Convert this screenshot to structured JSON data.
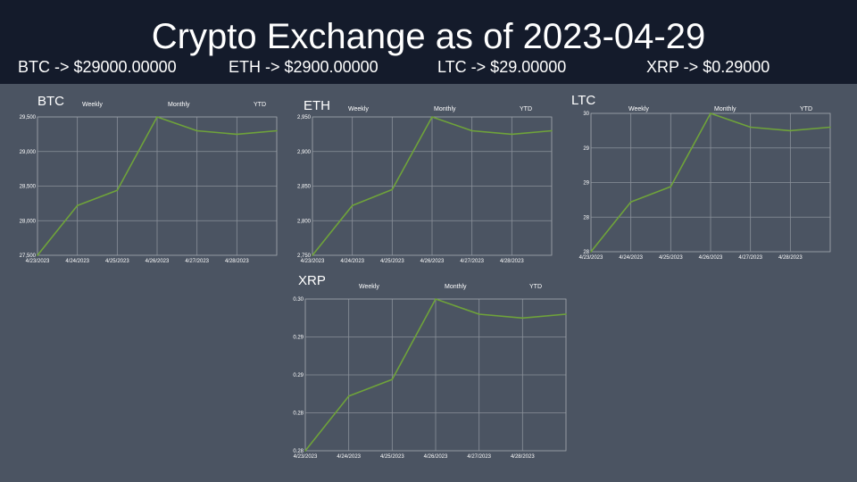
{
  "header": {
    "title": "Crypto Exchange as of 2023-04-29",
    "tickers": [
      {
        "text": "BTC -> $29000.00000"
      },
      {
        "text": "ETH -> $2900.00000"
      },
      {
        "text": "LTC -> $29.00000"
      },
      {
        "text": "XRP -> $0.29000"
      }
    ]
  },
  "periods": {
    "weekly": "Weekly",
    "monthly": "Monthly",
    "ytd": "YTD"
  },
  "colors": {
    "line": "#6fa33a",
    "grid": "#8a909a",
    "frame": "#9aa0a8",
    "header_bg": "#141b2b",
    "page_bg": "#4b5462"
  },
  "chart_data": [
    {
      "type": "line",
      "title": "BTC",
      "x": [
        "4/23/2023",
        "4/24/2023",
        "4/25/2023",
        "4/26/2023",
        "4/27/2023",
        "4/28/2023",
        ""
      ],
      "series": [
        {
          "values": [
            27500,
            28220,
            28440,
            29500,
            29300,
            29250,
            29300
          ]
        }
      ],
      "ylim": [
        27500,
        29500
      ],
      "yticks": [
        27500,
        28000,
        28500,
        29000,
        29500
      ],
      "ytick_labels": [
        "27,500",
        "28,000",
        "28,500",
        "29,000",
        "29,500"
      ],
      "grid": true
    },
    {
      "type": "line",
      "title": "ETH",
      "x": [
        "4/23/2023",
        "4/24/2023",
        "4/25/2023",
        "4/26/2023",
        "4/27/2023",
        "4/28/2023",
        ""
      ],
      "series": [
        {
          "values": [
            2750,
            2822,
            2845,
            2950,
            2930,
            2925,
            2930
          ]
        }
      ],
      "ylim": [
        2750,
        2950
      ],
      "yticks": [
        2750,
        2800,
        2850,
        2900,
        2950
      ],
      "ytick_labels": [
        "2,750",
        "2,800",
        "2,850",
        "2,900",
        "2,950"
      ],
      "grid": true
    },
    {
      "type": "line",
      "title": "LTC",
      "x": [
        "4/23/2023",
        "4/24/2023",
        "4/25/2023",
        "4/26/2023",
        "4/27/2023",
        "4/28/2023",
        ""
      ],
      "series": [
        {
          "values": [
            27.5,
            28.22,
            28.44,
            29.5,
            29.3,
            29.25,
            29.3
          ]
        }
      ],
      "ylim": [
        27.5,
        29.5
      ],
      "yticks": [
        27.5,
        28,
        28.5,
        29,
        29.5
      ],
      "ytick_labels": [
        "28",
        "28",
        "29",
        "29",
        "30"
      ],
      "grid": true
    },
    {
      "type": "line",
      "title": "XRP",
      "x": [
        "4/23/2023",
        "4/24/2023",
        "4/25/2023",
        "4/26/2023",
        "4/27/2023",
        "4/28/2023",
        ""
      ],
      "series": [
        {
          "values": [
            0.275,
            0.2822,
            0.2844,
            0.295,
            0.293,
            0.2925,
            0.293
          ]
        }
      ],
      "ylim": [
        0.275,
        0.295
      ],
      "yticks": [
        0.275,
        0.28,
        0.285,
        0.29,
        0.295
      ],
      "ytick_labels": [
        "0.28",
        "0.28",
        "0.29",
        "0.29",
        "0.30"
      ],
      "grid": true
    }
  ]
}
